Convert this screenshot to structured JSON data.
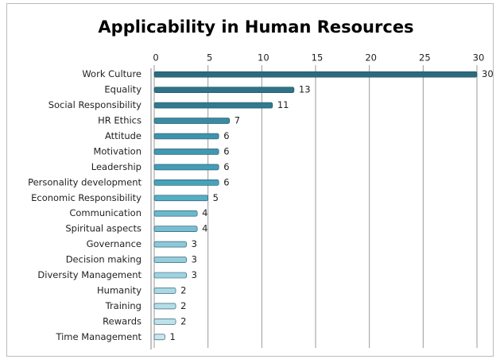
{
  "chart_data": {
    "type": "barh",
    "title": "Applicability in Human Resources",
    "categories": [
      "Work Culture",
      "Equality",
      "Social Responsibility",
      "HR Ethics",
      "Attitude",
      "Motivation",
      "Leadership",
      "Personality development",
      "Economic Responsibility",
      "Communication",
      "Spiritual aspects",
      "Governance",
      "Decision making",
      "Diversity Management",
      "Humanity",
      "Training",
      "Rewards",
      "Time Management"
    ],
    "values": [
      30,
      13,
      11,
      7,
      6,
      6,
      6,
      6,
      5,
      4,
      4,
      3,
      3,
      3,
      2,
      2,
      2,
      1
    ],
    "colors": [
      "#2c6b7e",
      "#2e7387",
      "#307a8f",
      "#3a8aa2",
      "#3f93ac",
      "#4198b2",
      "#449db7",
      "#47a3bd",
      "#56adc6",
      "#6db8cf",
      "#78bed3",
      "#8cc8da",
      "#95cddd",
      "#9fd2e0",
      "#acd8e5",
      "#b5dde8",
      "#bee2eb",
      "#c8e6ee"
    ],
    "xlim": [
      0,
      30
    ],
    "xticks": [
      0,
      5,
      10,
      15,
      20,
      25,
      30
    ],
    "grid": true
  }
}
